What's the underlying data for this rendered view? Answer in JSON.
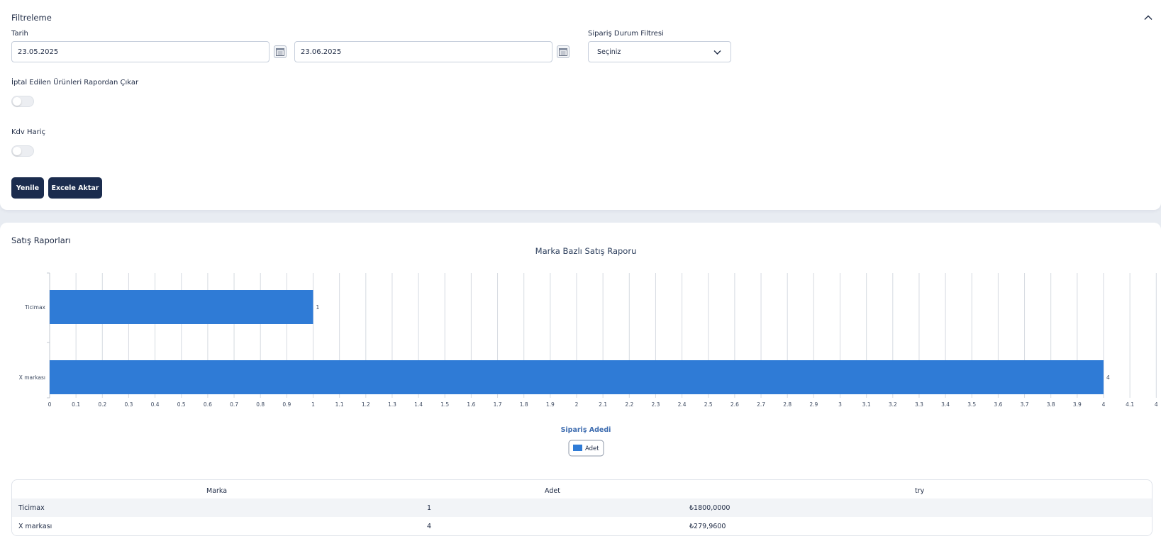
{
  "filter": {
    "title": "Filtreleme",
    "date_label": "Tarih",
    "date_start": "23.05.2025",
    "date_end": "23.06.2025",
    "status_filter_label": "Sipariş Durum Filtresi",
    "status_filter_value": "Seçiniz",
    "exclude_cancelled_label": "İptal Edilen Ürünleri Rapordan Çıkar",
    "exclude_cancelled_on": false,
    "vat_excluded_label": "Kdv Hariç",
    "vat_excluded_on": false,
    "refresh_button": "Yenile",
    "export_button": "Excele Aktar"
  },
  "report": {
    "title": "Satış Raporları"
  },
  "chart_data": {
    "type": "bar",
    "orientation": "horizontal",
    "title": "Marka Bazlı Satış Raporu",
    "xlabel": "Sipariş Adedi",
    "ylabel": "",
    "categories": [
      "Ticimax",
      "X markası"
    ],
    "series": [
      {
        "name": "Adet",
        "values": [
          1,
          4
        ],
        "color": "#2f7bd6"
      }
    ],
    "xlim": [
      0,
      4.2
    ],
    "x_ticks": [
      "0",
      "0.1",
      "0.2",
      "0.3",
      "0.4",
      "0.5",
      "0.6",
      "0.7",
      "0.8",
      "0.9",
      "1",
      "1.1",
      "1.2",
      "1.3",
      "1.4",
      "1.5",
      "1.6",
      "1.7",
      "1.8",
      "1.9",
      "2",
      "2.1",
      "2.2",
      "2.3",
      "2.4",
      "2.5",
      "2.6",
      "2.7",
      "2.8",
      "2.9",
      "3",
      "3.1",
      "3.2",
      "3.3",
      "3.4",
      "3.5",
      "3.6",
      "3.7",
      "3.8",
      "3.9",
      "4",
      "4.1",
      "4"
    ],
    "grid": true,
    "data_labels": true,
    "legend_position": "bottom"
  },
  "table": {
    "columns": [
      "Marka",
      "Adet",
      "try"
    ],
    "rows": [
      [
        "Ticimax",
        "1",
        "₺1800,0000"
      ],
      [
        "X markası",
        "4",
        "₺279,9600"
      ]
    ]
  },
  "colors": {
    "primary_button": "#1b2c4e",
    "bar": "#2f7bd6",
    "text": "#1e2a44"
  }
}
